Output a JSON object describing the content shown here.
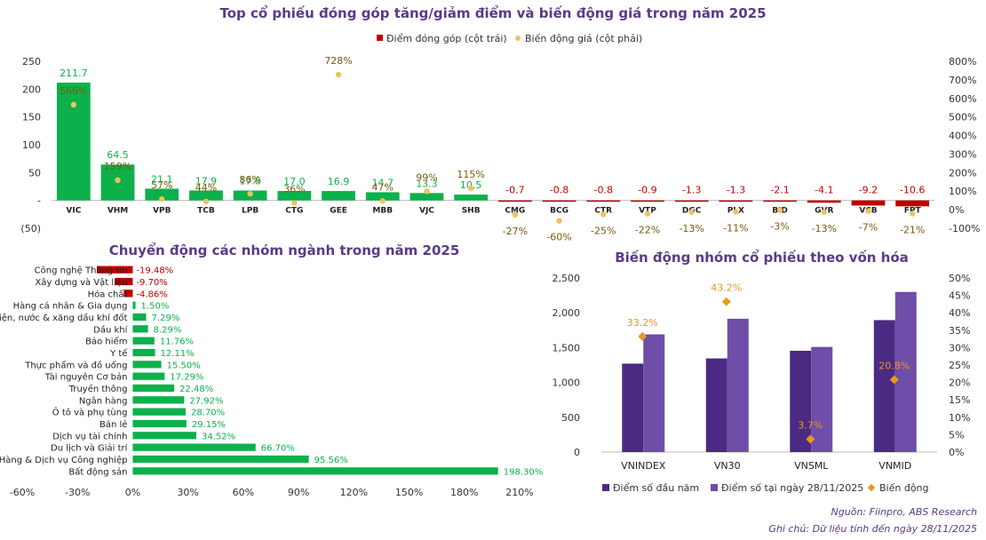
{
  "chart_data": [
    {
      "type": "bar",
      "title": "Top cổ phiếu đóng góp tăng/giảm điểm và biến động giá trong năm 2025",
      "legend_position": "top-center",
      "categories": [
        "VIC",
        "VHM",
        "VPB",
        "TCB",
        "LPB",
        "CTG",
        "GEE",
        "MBB",
        "VJC",
        "SHB",
        "CMG",
        "BCG",
        "CTR",
        "VTP",
        "DGC",
        "PLX",
        "BID",
        "GVR",
        "VCB",
        "FPT"
      ],
      "series": [
        {
          "name": "Điểm đóng góp (cột trái)",
          "axis": "left",
          "kind": "bar",
          "values": [
            211.7,
            64.5,
            21.1,
            17.9,
            17.8,
            17.0,
            16.9,
            14.7,
            13.3,
            10.5,
            -0.7,
            -0.8,
            -0.8,
            -0.9,
            -1.3,
            -1.3,
            -2.1,
            -4.1,
            -9.2,
            -10.6
          ],
          "labels": [
            "211.7",
            "64.5",
            "21.1",
            "17.9",
            "17.8",
            "17.0",
            "16.9",
            "14.7",
            "13.3",
            "10.5",
            "-0.7",
            "-0.8",
            "-0.8",
            "-0.9",
            "-1.3",
            "-1.3",
            "-2.1",
            "-4.1",
            "-9.2",
            "-10.6"
          ]
        },
        {
          "name": "Biến động giá (cột phải)",
          "axis": "right",
          "kind": "scatter",
          "unit": "%",
          "values": [
            566,
            159,
            57,
            44,
            86,
            36,
            728,
            47,
            99,
            115,
            -27,
            -60,
            -25,
            -22,
            -13,
            -11,
            -3,
            -13,
            -7,
            -21
          ],
          "labels": [
            "566%",
            "159%",
            "57%",
            "44%",
            "86%",
            "36%",
            "728%",
            "47%",
            "99%",
            "115%",
            "-27%",
            "-60%",
            "-25%",
            "-22%",
            "-13%",
            "-11%",
            "-3%",
            "-13%",
            "-7%",
            "-21%"
          ]
        }
      ],
      "y_left": {
        "min": -50,
        "max": 250,
        "ticks": [
          -50,
          0,
          50,
          100,
          150,
          200,
          250
        ],
        "tick_labels": [
          "(50)",
          "-",
          "50",
          "100",
          "150",
          "200",
          "250"
        ]
      },
      "y_right": {
        "min": -100,
        "max": 800,
        "ticks": [
          -100,
          0,
          100,
          200,
          300,
          400,
          500,
          600,
          700,
          800
        ],
        "tick_labels": [
          "-100%",
          "0%",
          "100%",
          "200%",
          "300%",
          "400%",
          "500%",
          "600%",
          "700%",
          "800%"
        ]
      },
      "colors": {
        "positive": "#0cb14b",
        "negative": "#c00000",
        "dot": "#f0c060",
        "label_pos": "#0cb14b",
        "label_neg": "#c00000",
        "dot_label": "#7a5a10"
      }
    },
    {
      "type": "bar",
      "orientation": "horizontal",
      "title": "Chuyển động các nhóm ngành trong năm 2025",
      "categories": [
        "Công nghệ Thông tin",
        "Xây dựng và Vật liệu",
        "Hóa chất",
        "Hàng cá nhân & Gia dụng",
        "Điện, nước & xăng dầu khí đốt",
        "Dầu khí",
        "Bảo hiểm",
        "Y tế",
        "Thực phẩm và đồ uống",
        "Tài nguyên Cơ bản",
        "Truyền thông",
        "Ngân hàng",
        "Ô tô và phụ tùng",
        "Bán lẻ",
        "Dịch vụ tài chính",
        "Du lịch và Giải trí",
        "Hàng & Dịch vụ Công nghiệp",
        "Bất động sản"
      ],
      "values": [
        -19.48,
        -9.7,
        -4.86,
        1.5,
        7.29,
        8.29,
        11.76,
        12.11,
        15.5,
        17.29,
        22.48,
        27.92,
        28.7,
        29.15,
        34.52,
        66.7,
        95.56,
        198.3
      ],
      "labels": [
        "-19.48%",
        "-9.70%",
        "-4.86%",
        "1.50%",
        "7.29%",
        "8.29%",
        "11.76%",
        "12.11%",
        "15.50%",
        "17.29%",
        "22.48%",
        "27.92%",
        "28.70%",
        "29.15%",
        "34.52%",
        "66.70%",
        "95.56%",
        "198.30%"
      ],
      "x_axis": {
        "min": -60,
        "max": 210,
        "ticks": [
          -60,
          -30,
          0,
          30,
          60,
          90,
          120,
          150,
          180,
          210
        ],
        "tick_labels": [
          "-60%",
          "-30%",
          "0%",
          "30%",
          "60%",
          "90%",
          "120%",
          "150%",
          "180%",
          "210%"
        ]
      },
      "colors": {
        "positive": "#0cb14b",
        "negative": "#c00000"
      }
    },
    {
      "type": "bar",
      "title": "Biến động nhóm cổ phiếu theo vốn hóa",
      "legend_position": "bottom",
      "categories": [
        "VNINDEX",
        "VN30",
        "VNSML",
        "VNMID"
      ],
      "series": [
        {
          "name": "Điểm số đầu năm",
          "axis": "left",
          "kind": "bar",
          "color": "#4b2a83",
          "values": [
            1270,
            1345,
            1455,
            1895
          ]
        },
        {
          "name": "Điểm số tại ngày 28/11/2025",
          "axis": "left",
          "kind": "bar",
          "color": "#6e4ea8",
          "values": [
            1690,
            1915,
            1510,
            2300
          ]
        },
        {
          "name": "Biến động",
          "axis": "right",
          "kind": "scatter",
          "color": "#e69a1e",
          "values": [
            33.2,
            43.2,
            3.7,
            20.8
          ],
          "labels": [
            "33.2%",
            "43.2%",
            "3.7%",
            "20.8%"
          ]
        }
      ],
      "y_left": {
        "min": 0,
        "max": 2500,
        "ticks": [
          0,
          500,
          1000,
          1500,
          2000,
          2500
        ],
        "tick_labels": [
          "0",
          "500",
          "1,000",
          "1,500",
          "2,000",
          "2,500"
        ]
      },
      "y_right": {
        "min": 0,
        "max": 50,
        "ticks": [
          0,
          5,
          10,
          15,
          20,
          25,
          30,
          35,
          40,
          45,
          50
        ],
        "tick_labels": [
          "0%",
          "5%",
          "10%",
          "15%",
          "20%",
          "25%",
          "30%",
          "35%",
          "40%",
          "45%",
          "50%"
        ]
      }
    }
  ],
  "footer": {
    "source": "Nguồn: Fiinpro, ABS Research",
    "note": "Ghi chú: Dữ liệu tính đến ngày 28/11/2025"
  }
}
